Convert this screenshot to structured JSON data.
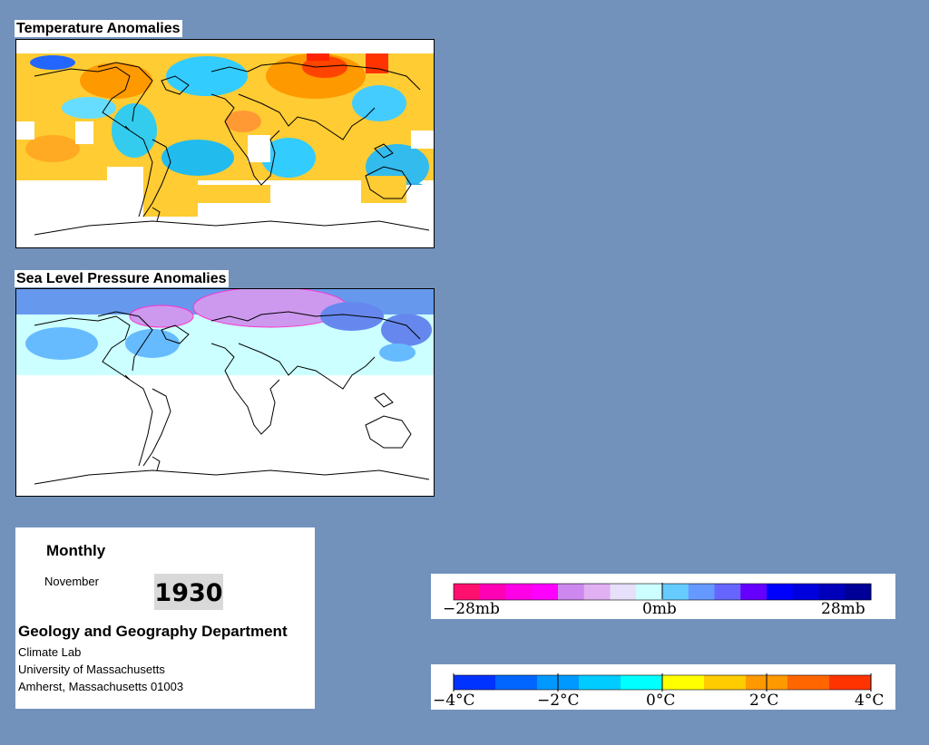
{
  "temperature_map": {
    "title": "Temperature Anomalies"
  },
  "pressure_map": {
    "title": "Sea Level Pressure Anomalies"
  },
  "info": {
    "period": "Monthly",
    "month": "November",
    "year": "1930",
    "department": "Geology and Geography Department",
    "lab": "Climate Lab",
    "university": "University of Massachusetts",
    "address": "Amherst, Massachusetts 01003"
  },
  "pressure_legend": {
    "colors": [
      "#ff0f6e",
      "#ff00b4",
      "#ff00e6",
      "#ff00ff",
      "#cc88ee",
      "#e0b0f2",
      "#e6e0fa",
      "#ccffff",
      "#66ccff",
      "#6699ff",
      "#6666ff",
      "#6600ff",
      "#0000ff",
      "#0000dd",
      "#0000bb",
      "#000099"
    ],
    "labels": [
      "−28mb",
      "0mb",
      "28mb"
    ]
  },
  "temperature_legend": {
    "colors": [
      "#0033ff",
      "#0066ff",
      "#0099ff",
      "#00ccff",
      "#00ffff",
      "#ffff00",
      "#ffcc00",
      "#ff9900",
      "#ff6600",
      "#ff3300"
    ],
    "labels": [
      "−4°C",
      "−2°C",
      "0°C",
      "2°C",
      "4°C"
    ]
  }
}
